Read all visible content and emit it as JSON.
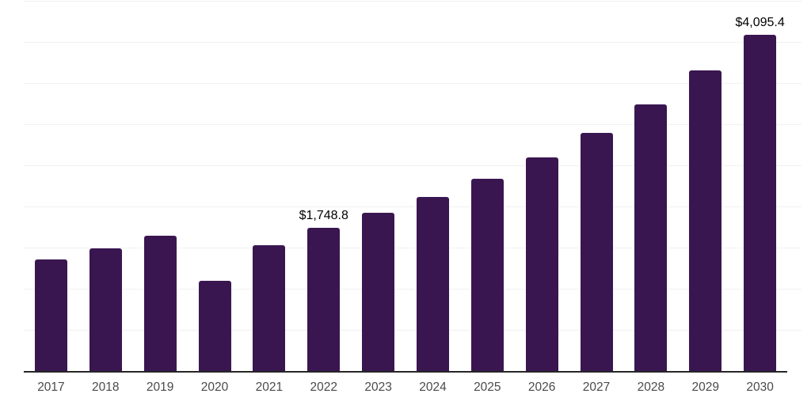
{
  "chart_data": {
    "type": "bar",
    "title": "",
    "xlabel": "",
    "ylabel": "",
    "categories": [
      "2017",
      "2018",
      "2019",
      "2020",
      "2021",
      "2022",
      "2023",
      "2024",
      "2025",
      "2026",
      "2027",
      "2028",
      "2029",
      "2030"
    ],
    "values": [
      1370,
      1505,
      1655,
      1105,
      1540,
      1748.8,
      1935,
      2130,
      2345,
      2605,
      2900,
      3250,
      3660,
      4095.4
    ],
    "annotations": [
      {
        "category": "2022",
        "label": "$1,748.8"
      },
      {
        "category": "2030",
        "label": "$4,095.4"
      }
    ],
    "ylim": [
      0,
      4500
    ],
    "gridline_step": 500,
    "grid": true,
    "y_tick_labels_visible": false,
    "legend": "none",
    "colors": {
      "bar": "#3a1650",
      "gridline": "#f1f1f1",
      "axis_line": "#262626",
      "tick_label": "#4a4a4a",
      "data_label": "#000000",
      "background": "#ffffff"
    }
  }
}
